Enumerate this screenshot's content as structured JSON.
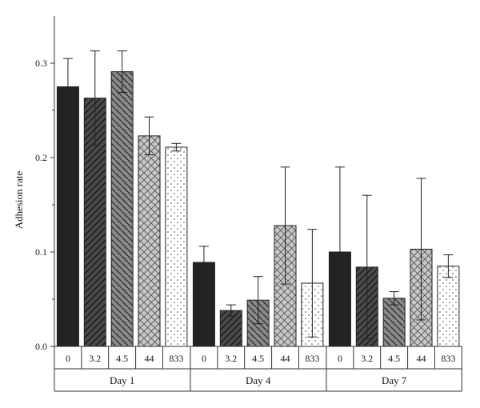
{
  "chart_data": {
    "type": "bar",
    "ylabel": "Adhesion rate",
    "ylim": [
      0,
      0.35
    ],
    "yticks": [
      "0.0",
      "0.1",
      "0.2",
      "0.3"
    ],
    "groups": [
      {
        "label": "Day 1",
        "bars": [
          {
            "label": "0",
            "value": 0.275,
            "error": 0.03,
            "pattern": "black"
          },
          {
            "label": "3.2",
            "value": 0.263,
            "error": 0.05,
            "pattern": "dark-diag"
          },
          {
            "label": "4.5",
            "value": 0.291,
            "error": 0.022,
            "pattern": "gray-diag"
          },
          {
            "label": "44",
            "value": 0.223,
            "error": 0.02,
            "pattern": "crosshatch"
          },
          {
            "label": "833",
            "value": 0.211,
            "error": 0.004,
            "pattern": "dots"
          }
        ]
      },
      {
        "label": "Day 4",
        "bars": [
          {
            "label": "0",
            "value": 0.089,
            "error": 0.017,
            "pattern": "black"
          },
          {
            "label": "3.2",
            "value": 0.038,
            "error": 0.006,
            "pattern": "dark-diag"
          },
          {
            "label": "4.5",
            "value": 0.049,
            "error": 0.025,
            "pattern": "gray-diag"
          },
          {
            "label": "44",
            "value": 0.128,
            "error": 0.062,
            "pattern": "crosshatch"
          },
          {
            "label": "833",
            "value": 0.067,
            "error": 0.057,
            "pattern": "dots"
          }
        ]
      },
      {
        "label": "Day 7",
        "bars": [
          {
            "label": "0",
            "value": 0.1,
            "error": 0.09,
            "pattern": "black"
          },
          {
            "label": "3.2",
            "value": 0.084,
            "error": 0.076,
            "pattern": "dark-diag"
          },
          {
            "label": "4.5",
            "value": 0.051,
            "error": 0.007,
            "pattern": "gray-diag"
          },
          {
            "label": "44",
            "value": 0.103,
            "error": 0.075,
            "pattern": "crosshatch"
          },
          {
            "label": "833",
            "value": 0.085,
            "error": 0.012,
            "pattern": "dots"
          }
        ]
      }
    ],
    "colors": {
      "black": "#222222",
      "dark_diag": "#4a4a4a",
      "gray_diag": "#8a8a8a",
      "crosshatch": "#c8c8c8",
      "dots_bg": "#ffffff",
      "axis": "#333333"
    }
  }
}
